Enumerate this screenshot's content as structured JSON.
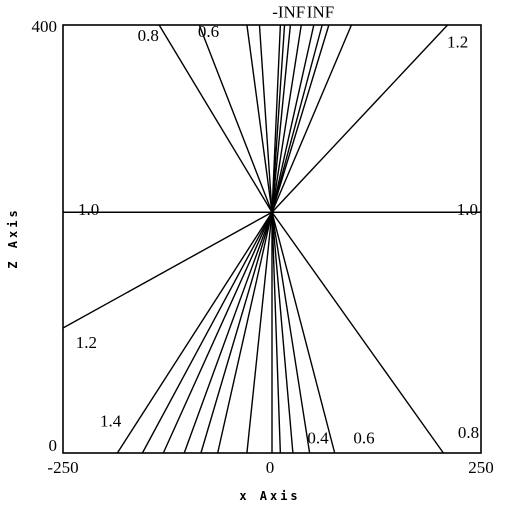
{
  "chart_data": {
    "type": "line",
    "title": "",
    "xlabel": "x Axis",
    "ylabel": "Z Axis",
    "xlim": [
      -250,
      250
    ],
    "ylim": [
      0,
      400
    ],
    "x_ticks": [
      "-250",
      "0",
      "250"
    ],
    "y_ticks": [
      "0",
      "400"
    ],
    "grid": false,
    "focus_point": {
      "x": 0,
      "z": 225
    },
    "horizontal_line": {
      "z": 225,
      "left_label": "1.0",
      "right_label": "1.0"
    },
    "upper_rays_x_at_top": [
      -135,
      -87,
      -30,
      -15,
      10,
      15,
      22,
      35,
      50,
      60,
      68,
      95,
      210
    ],
    "lower_rays_x_at_bottom": [
      -520,
      -185,
      -155,
      -130,
      -105,
      -85,
      -65,
      -30,
      0,
      10,
      25,
      45,
      75,
      205
    ],
    "annotations": [
      {
        "text": "-INF",
        "x": 20,
        "z": 407
      },
      {
        "text": "INF",
        "x": 58,
        "z": 407
      },
      {
        "text": "0.8",
        "x": -148,
        "z": 385
      },
      {
        "text": "0.6",
        "x": -76,
        "z": 389
      },
      {
        "text": "1.2",
        "x": 222,
        "z": 379
      },
      {
        "text": "1.2",
        "x": -222,
        "z": 98
      },
      {
        "text": "1.4",
        "x": -193,
        "z": 25
      },
      {
        "text": "0.4",
        "x": 55,
        "z": 9
      },
      {
        "text": "0.6",
        "x": 110,
        "z": 9
      },
      {
        "text": "0.8",
        "x": 235,
        "z": 14
      }
    ]
  }
}
